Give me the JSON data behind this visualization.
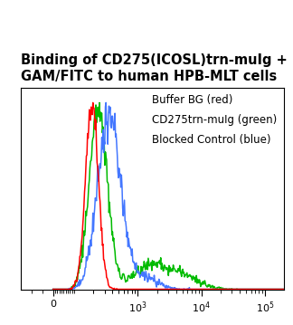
{
  "title_line1": "Binding of CD275(ICOSL)trn-muIg +",
  "title_line2": "GAM/FITC to human HPB-MLT cells",
  "title_fontsize": 10.5,
  "legend_lines": [
    "Buffer BG (red)",
    "CD275trn-muIg (green)",
    "Blocked Control (blue)"
  ],
  "legend_fontsize": 8.5,
  "colors": {
    "red": "#ff0000",
    "green": "#00bb00",
    "blue": "#4477ff"
  },
  "ylim": [
    0,
    1.08
  ],
  "background": "#ffffff",
  "plot_background": "#ffffff",
  "linthresh": 100,
  "linscale": 0.3
}
